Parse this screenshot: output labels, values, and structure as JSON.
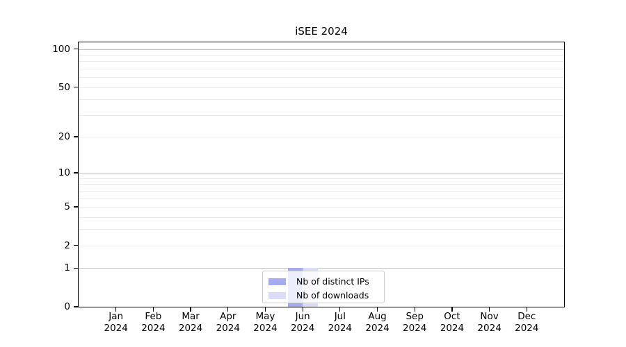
{
  "chart_data": {
    "type": "bar",
    "title": "iSEE 2024",
    "categories": [
      "Jan 2024",
      "Feb 2024",
      "Mar 2024",
      "Apr 2024",
      "May 2024",
      "Jun 2024",
      "Jul 2024",
      "Aug 2024",
      "Sep 2024",
      "Oct 2024",
      "Nov 2024",
      "Dec 2024"
    ],
    "series": [
      {
        "name": "Nb of distinct IPs",
        "color": "#a6abef",
        "values": [
          0,
          0,
          0,
          0,
          0,
          1,
          0,
          0,
          0,
          0,
          0,
          0
        ]
      },
      {
        "name": "Nb of downloads",
        "color": "#dadcf8",
        "values": [
          0,
          0,
          0,
          0,
          0,
          1,
          0,
          0,
          0,
          0,
          0,
          0
        ]
      }
    ],
    "xlabel": "",
    "ylabel": "",
    "y_scale": "log1p",
    "ylim": [
      0,
      113
    ],
    "y_ticks": [
      100,
      50,
      20,
      10,
      5,
      2,
      1,
      0
    ],
    "y_gridlines": {
      "major": [
        100,
        10,
        1
      ],
      "minor": [
        90,
        80,
        70,
        60,
        50,
        40,
        30,
        20,
        9,
        8,
        7,
        6,
        5,
        4,
        3,
        2
      ]
    },
    "grid": "on",
    "legend_position": "bottom-center"
  },
  "colors": {
    "background": "#ffffff",
    "frame": "#000000",
    "grid_major": "#c4c4c4",
    "grid_minor": "#ebebeb",
    "legend_border": "#cccccc",
    "bar_distinct_ips": "#a6abef",
    "bar_downloads": "#dadcf8"
  }
}
